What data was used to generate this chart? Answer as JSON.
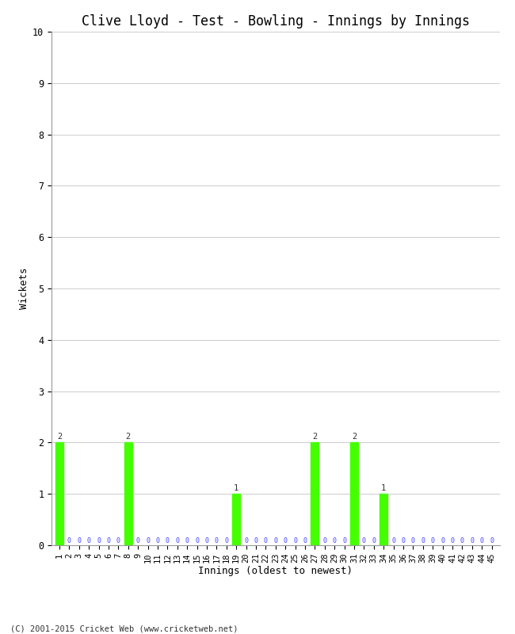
{
  "title": "Clive Lloyd - Test - Bowling - Innings by Innings",
  "xlabel": "Innings (oldest to newest)",
  "ylabel": "Wickets",
  "copyright": "(C) 2001-2015 Cricket Web (www.cricketweb.net)",
  "ylim": [
    0,
    10
  ],
  "yticks": [
    0,
    1,
    2,
    3,
    4,
    5,
    6,
    7,
    8,
    9,
    10
  ],
  "num_innings": 45,
  "wickets": [
    2,
    0,
    0,
    0,
    0,
    0,
    0,
    2,
    0,
    0,
    0,
    0,
    0,
    0,
    0,
    0,
    0,
    0,
    1,
    0,
    0,
    0,
    0,
    0,
    0,
    0,
    2,
    0,
    0,
    0,
    2,
    0,
    0,
    1,
    0,
    0,
    0,
    0,
    0,
    0,
    0,
    0,
    0,
    0,
    0
  ],
  "bar_color": "#44ff00",
  "zero_color": "#4444ff",
  "background_color": "#ffffff",
  "grid_color": "#cccccc",
  "title_fontsize": 12,
  "label_fontsize": 9,
  "tick_fontsize": 7.5,
  "zero_fontsize": 6.0,
  "value_label_fontsize": 7.5
}
